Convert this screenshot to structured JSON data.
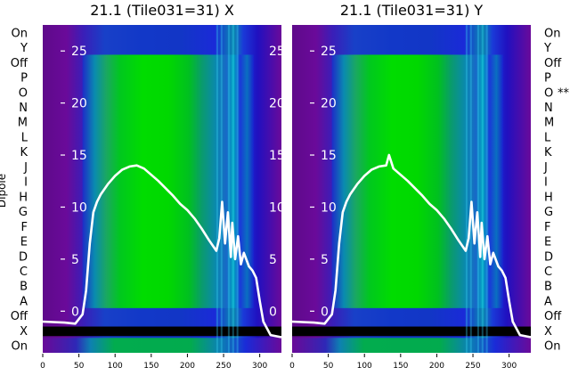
{
  "chart_data": {
    "type": "heatmap",
    "rows": [
      "On",
      "Y",
      "Off",
      "P",
      "O",
      "N",
      "M",
      "L",
      "K",
      "J",
      "I",
      "H",
      "G",
      "F",
      "E",
      "D",
      "C",
      "B",
      "A",
      "Off",
      "X",
      "On"
    ],
    "ylabel": "Dipole",
    "xticks": [
      0,
      50,
      100,
      150,
      200,
      250,
      300
    ],
    "xlim": [
      0,
      330
    ],
    "overlay_yticks": [
      0,
      5,
      10,
      15,
      20,
      25
    ],
    "overlay_ylim": [
      -4,
      27.5
    ],
    "colors": {
      "purple": "#6a0a9a",
      "blue": "#1a2ad8",
      "cyan": "#0a8ab0",
      "green": "#00d200",
      "line": "#ffffff",
      "band": "#000000"
    },
    "panels": [
      {
        "title": "21.1 (Tile031=31) X",
        "flagged_row": "",
        "flagged_marker": "",
        "curve": {
          "x": [
            0,
            30,
            45,
            55,
            60,
            65,
            70,
            75,
            80,
            90,
            100,
            110,
            120,
            130,
            140,
            150,
            160,
            170,
            180,
            190,
            200,
            210,
            220,
            230,
            240,
            244,
            248,
            252,
            256,
            260,
            262,
            266,
            270,
            274,
            278,
            285,
            290,
            295,
            300,
            305,
            315,
            330
          ],
          "y": [
            -1,
            -1.1,
            -1.2,
            -0.3,
            2,
            6.5,
            9.5,
            10.5,
            11.2,
            12.2,
            13,
            13.6,
            13.9,
            14,
            13.7,
            13.1,
            12.5,
            11.8,
            11.1,
            10.3,
            9.7,
            8.9,
            7.9,
            6.8,
            5.8,
            7,
            10.5,
            6.5,
            9.5,
            5.2,
            8.5,
            5,
            7.2,
            4.5,
            5.6,
            4.3,
            3.9,
            3.2,
            1,
            -1,
            -2.3,
            -2.5
          ]
        }
      },
      {
        "title": "21.1 (Tile031=31) Y",
        "flagged_row": "O",
        "flagged_marker": "**",
        "curve": {
          "x": [
            0,
            30,
            45,
            55,
            60,
            65,
            70,
            75,
            80,
            90,
            100,
            110,
            120,
            130,
            134,
            140,
            150,
            160,
            170,
            180,
            190,
            200,
            210,
            220,
            230,
            240,
            244,
            248,
            252,
            256,
            260,
            262,
            266,
            270,
            274,
            278,
            285,
            290,
            295,
            300,
            305,
            315,
            330
          ],
          "y": [
            -1,
            -1.1,
            -1.2,
            -0.3,
            2,
            6.5,
            9.5,
            10.5,
            11.2,
            12.2,
            13,
            13.6,
            13.9,
            14,
            15,
            13.7,
            13.1,
            12.5,
            11.8,
            11.1,
            10.3,
            9.7,
            8.9,
            7.9,
            6.8,
            5.8,
            7,
            10.5,
            6.5,
            9.5,
            5.2,
            8.5,
            5,
            7.2,
            4.5,
            5.6,
            4.3,
            3.9,
            3.2,
            1,
            -1,
            -2.3,
            -2.5
          ]
        }
      }
    ]
  }
}
